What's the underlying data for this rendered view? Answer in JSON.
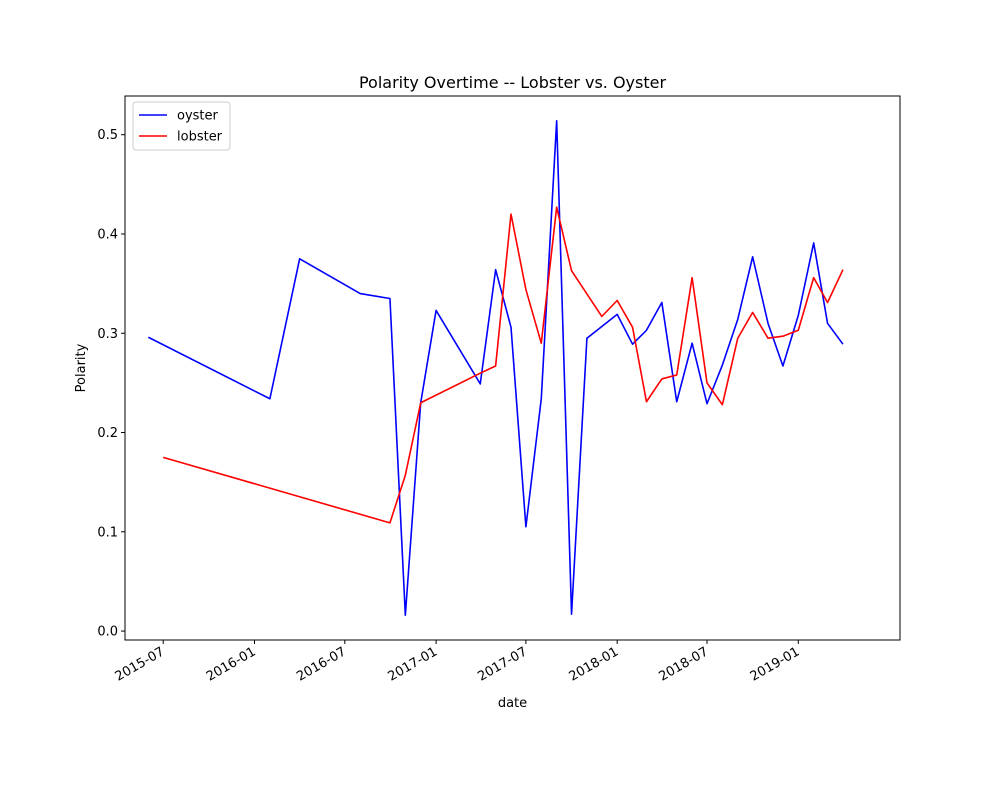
{
  "chart_data": {
    "type": "line",
    "title": "Polarity Overtime -- Lobster vs. Oyster",
    "xlabel": "date",
    "ylabel": "Polarity",
    "x_type": "date",
    "xlim": [
      "2015-04-15",
      "2019-07-25"
    ],
    "ylim": [
      -0.009,
      0.539
    ],
    "x_ticks": [
      {
        "value": "2015-07-01",
        "label": "2015-07"
      },
      {
        "value": "2016-01-01",
        "label": "2016-01"
      },
      {
        "value": "2016-07-01",
        "label": "2016-07"
      },
      {
        "value": "2017-01-01",
        "label": "2017-01"
      },
      {
        "value": "2017-07-01",
        "label": "2017-07"
      },
      {
        "value": "2018-01-01",
        "label": "2018-01"
      },
      {
        "value": "2018-07-01",
        "label": "2018-07"
      },
      {
        "value": "2019-01-01",
        "label": "2019-01"
      }
    ],
    "y_ticks": [
      {
        "value": 0.0,
        "label": "0.0"
      },
      {
        "value": 0.1,
        "label": "0.1"
      },
      {
        "value": 0.2,
        "label": "0.2"
      },
      {
        "value": 0.3,
        "label": "0.3"
      },
      {
        "value": 0.4,
        "label": "0.4"
      },
      {
        "value": 0.5,
        "label": "0.5"
      }
    ],
    "grid": false,
    "legend": {
      "position": "top-left"
    },
    "series": [
      {
        "name": "oyster",
        "color": "#0000ff",
        "points": [
          [
            "2015-06-01",
            0.296
          ],
          [
            "2016-02-01",
            0.234
          ],
          [
            "2016-04-01",
            0.375
          ],
          [
            "2016-08-01",
            0.34
          ],
          [
            "2016-09-30",
            0.335
          ],
          [
            "2016-10-31",
            0.016
          ],
          [
            "2016-12-01",
            0.23
          ],
          [
            "2017-01-01",
            0.323
          ],
          [
            "2017-03-31",
            0.249
          ],
          [
            "2017-05-01",
            0.364
          ],
          [
            "2017-06-01",
            0.306
          ],
          [
            "2017-07-01",
            0.105
          ],
          [
            "2017-08-01",
            0.234
          ],
          [
            "2017-09-01",
            0.514
          ],
          [
            "2017-10-01",
            0.017
          ],
          [
            "2017-11-01",
            0.295
          ],
          [
            "2018-01-01",
            0.319
          ],
          [
            "2018-02-01",
            0.289
          ],
          [
            "2018-03-01",
            0.303
          ],
          [
            "2018-04-01",
            0.331
          ],
          [
            "2018-05-01",
            0.231
          ],
          [
            "2018-06-01",
            0.29
          ],
          [
            "2018-07-01",
            0.229
          ],
          [
            "2018-08-01",
            0.268
          ],
          [
            "2018-09-01",
            0.314
          ],
          [
            "2018-10-01",
            0.377
          ],
          [
            "2018-11-01",
            0.31
          ],
          [
            "2018-12-01",
            0.267
          ],
          [
            "2019-01-01",
            0.318
          ],
          [
            "2019-02-01",
            0.391
          ],
          [
            "2019-03-01",
            0.31
          ],
          [
            "2019-04-01",
            0.289
          ]
        ]
      },
      {
        "name": "lobster",
        "color": "#ff0000",
        "points": [
          [
            "2015-07-01",
            0.175
          ],
          [
            "2016-09-30",
            0.109
          ],
          [
            "2016-10-31",
            0.157
          ],
          [
            "2016-12-01",
            0.23
          ],
          [
            "2017-04-01",
            0.26
          ],
          [
            "2017-05-01",
            0.267
          ],
          [
            "2017-06-01",
            0.42
          ],
          [
            "2017-07-01",
            0.344
          ],
          [
            "2017-08-01",
            0.29
          ],
          [
            "2017-09-01",
            0.427
          ],
          [
            "2017-10-01",
            0.363
          ],
          [
            "2017-12-01",
            0.317
          ],
          [
            "2018-01-01",
            0.333
          ],
          [
            "2018-02-01",
            0.306
          ],
          [
            "2018-03-01",
            0.231
          ],
          [
            "2018-04-01",
            0.254
          ],
          [
            "2018-05-01",
            0.258
          ],
          [
            "2018-06-01",
            0.356
          ],
          [
            "2018-07-01",
            0.25
          ],
          [
            "2018-08-01",
            0.228
          ],
          [
            "2018-09-01",
            0.295
          ],
          [
            "2018-10-01",
            0.321
          ],
          [
            "2018-11-01",
            0.295
          ],
          [
            "2018-12-01",
            0.297
          ],
          [
            "2019-01-01",
            0.303
          ],
          [
            "2019-02-01",
            0.356
          ],
          [
            "2019-03-01",
            0.331
          ],
          [
            "2019-04-01",
            0.364
          ]
        ]
      }
    ]
  }
}
